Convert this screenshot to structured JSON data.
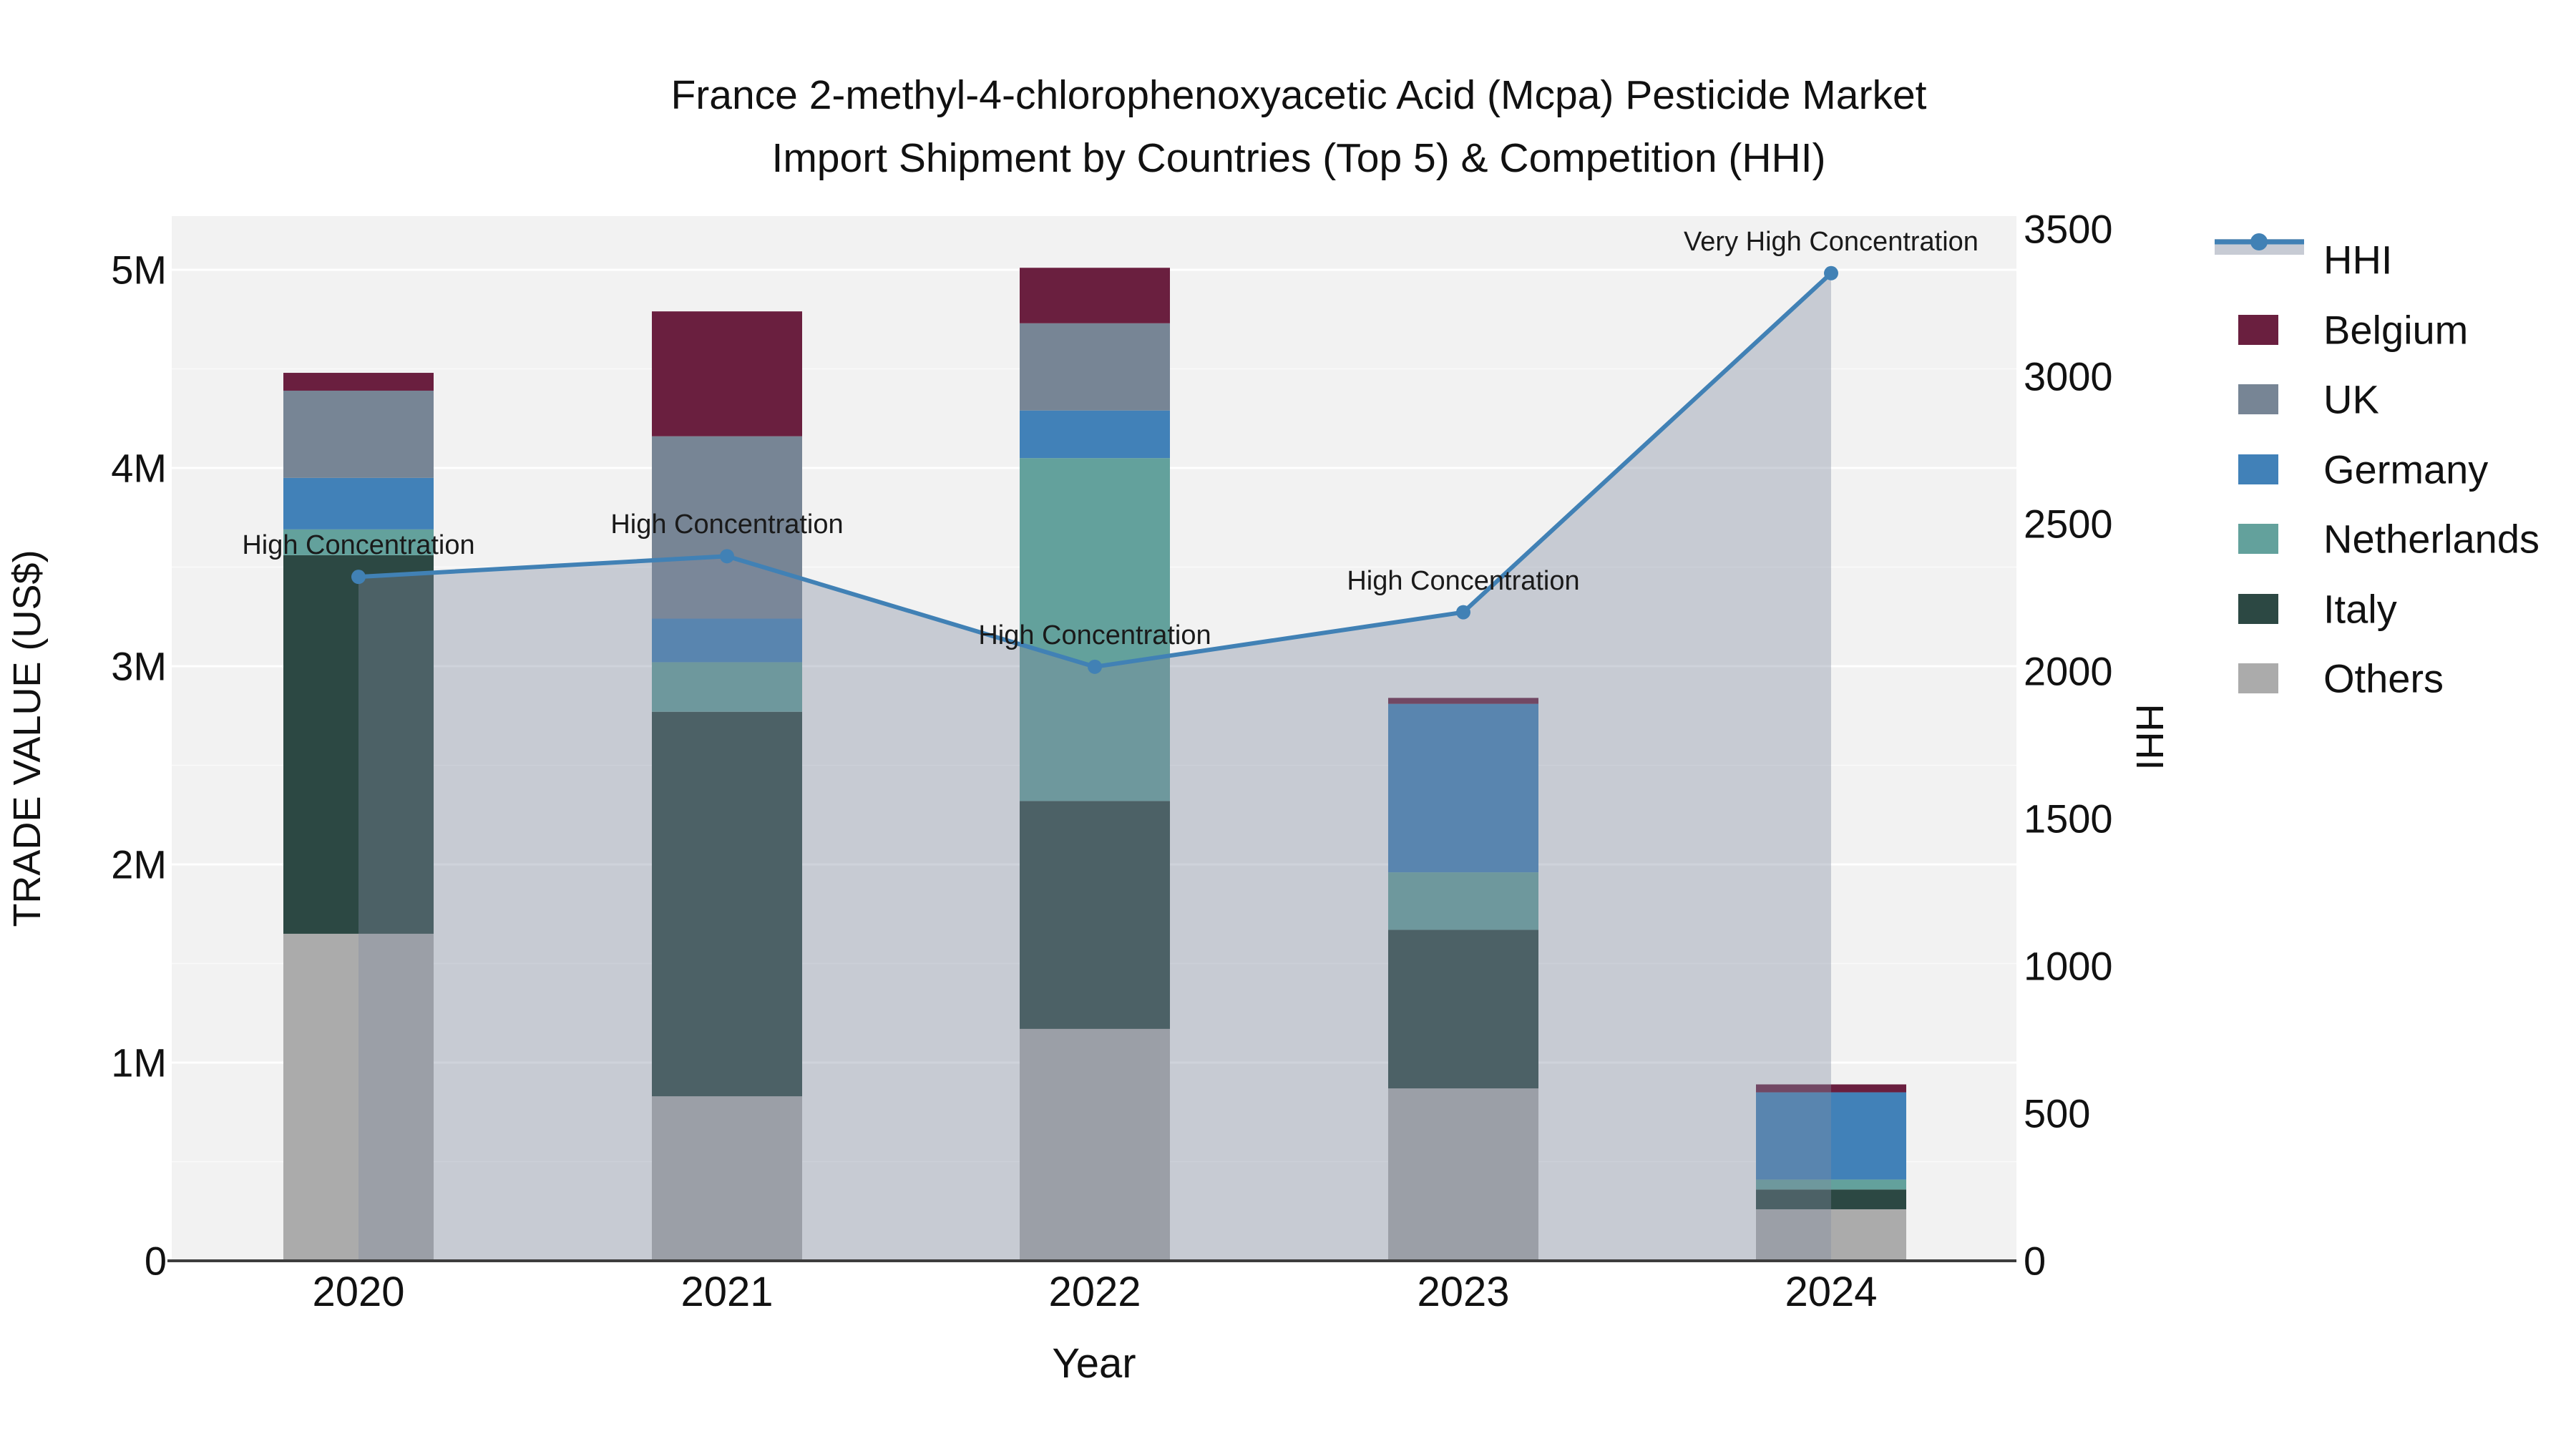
{
  "title": {
    "line1": "France 2-methyl-4-chlorophenoxyacetic Acid (Mcpa) Pesticide Market",
    "line2": "Import Shipment by Countries (Top 5) & Competition (HHI)"
  },
  "axes": {
    "x_label": "Year",
    "y_left_label": "TRADE VALUE (US$)",
    "y_right_label": "HHI",
    "y_left_ticks": [
      "0",
      "1M",
      "2M",
      "3M",
      "4M",
      "5M"
    ],
    "y_right_ticks": [
      "0",
      "500",
      "1000",
      "1500",
      "2000",
      "2500",
      "3000",
      "3500"
    ]
  },
  "legend": {
    "items": [
      {
        "label": "HHI",
        "type": "line",
        "color": "#4181b5"
      },
      {
        "label": "Belgium",
        "type": "swatch",
        "color": "#6a1f3f"
      },
      {
        "label": "UK",
        "type": "swatch",
        "color": "#778595"
      },
      {
        "label": "Germany",
        "type": "swatch",
        "color": "#4181b8"
      },
      {
        "label": "Netherlands",
        "type": "swatch",
        "color": "#63a19c"
      },
      {
        "label": "Italy",
        "type": "swatch",
        "color": "#2c4843"
      },
      {
        "label": "Others",
        "type": "swatch",
        "color": "#ababab"
      }
    ]
  },
  "chart_data": {
    "type": "bar",
    "subtype": "stacked-bar-with-line",
    "title": "France 2-methyl-4-chlorophenoxyacetic Acid (Mcpa) Pesticide Market Import Shipment by Countries (Top 5) & Competition (HHI)",
    "categories": [
      "2020",
      "2021",
      "2022",
      "2023",
      "2024"
    ],
    "xlabel": "Year",
    "ylabel_left": "TRADE VALUE (US$)",
    "ylabel_right": "HHI",
    "ylim_left_usd": [
      0,
      5270000
    ],
    "ylim_right_hhi": [
      0,
      3545
    ],
    "grid": true,
    "legend_position": "right",
    "bar_series_bottom_to_top": [
      {
        "name": "Others",
        "color": "#ababab",
        "values_usd": [
          1650000,
          830000,
          1170000,
          870000,
          260000
        ]
      },
      {
        "name": "Italy",
        "color": "#2c4843",
        "values_usd": [
          1910000,
          1940000,
          1150000,
          800000,
          100000
        ]
      },
      {
        "name": "Netherlands",
        "color": "#63a19c",
        "values_usd": [
          130000,
          250000,
          1730000,
          290000,
          50000
        ]
      },
      {
        "name": "Germany",
        "color": "#4181b8",
        "values_usd": [
          260000,
          220000,
          240000,
          850000,
          440000
        ]
      },
      {
        "name": "UK",
        "color": "#778595",
        "values_usd": [
          440000,
          920000,
          440000,
          0,
          0
        ]
      },
      {
        "name": "Belgium",
        "color": "#6a1f3f",
        "values_usd": [
          90000,
          630000,
          280000,
          30000,
          40000
        ]
      }
    ],
    "bar_totals_usd": [
      4480000,
      4790000,
      5010000,
      2840000,
      890000
    ],
    "line_series": {
      "name": "HHI",
      "color": "#4181b5",
      "area_fill_color": "#828ca0",
      "area_fill_opacity": 0.38,
      "values": [
        2320,
        2390,
        2015,
        2200,
        3350
      ]
    },
    "annotations": [
      {
        "x": "2020",
        "text": "High Concentration"
      },
      {
        "x": "2021",
        "text": "High Concentration"
      },
      {
        "x": "2022",
        "text": "High Concentration"
      },
      {
        "x": "2023",
        "text": "High Concentration"
      },
      {
        "x": "2024",
        "text": "Very High Concentration"
      }
    ],
    "plot_bg_color": "#f2f2f2",
    "gridline_color": "#ffffff"
  }
}
